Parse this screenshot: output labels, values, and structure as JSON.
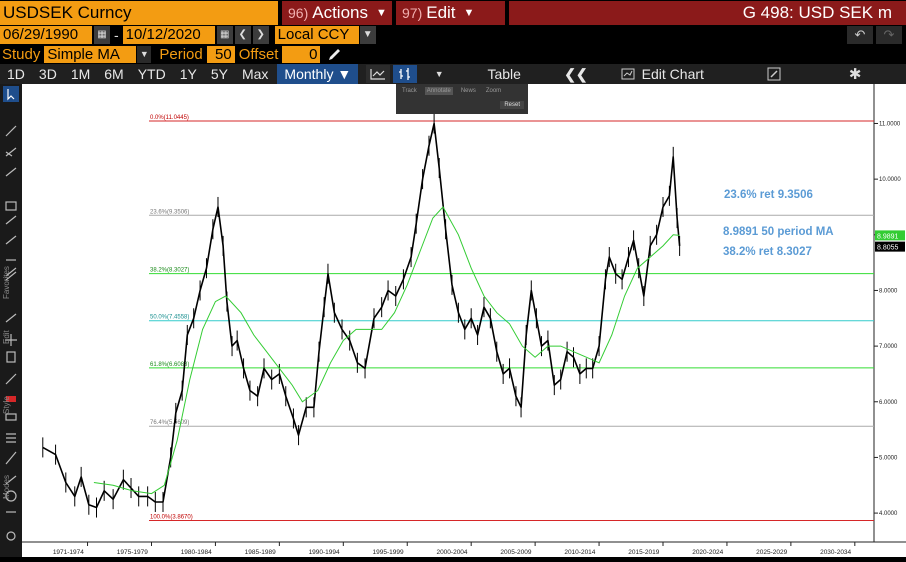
{
  "header": {
    "ticker": "USDSEK Curncy",
    "actions_num": "96)",
    "actions_label": "Actions",
    "edit_num": "97)",
    "edit_label": "Edit",
    "title": "G 498: USD SEK m"
  },
  "range": {
    "start_date": "06/29/1990",
    "separator": "-",
    "end_date": "10/12/2020",
    "currency": "Local CCY"
  },
  "study": {
    "label": "Study",
    "value": "Simple MA",
    "period_label": "Period",
    "period": "50",
    "offset_label": "Offset",
    "offset": "0"
  },
  "toolbar": {
    "periods": [
      "1D",
      "3D",
      "1M",
      "6M",
      "YTD",
      "1Y",
      "5Y",
      "Max"
    ],
    "frequency": "Monthly ▼",
    "table_label": "Table",
    "edit_chart_label": "Edit Chart"
  },
  "popup": {
    "items": [
      "Track",
      "Annotate",
      "News",
      "Zoom"
    ],
    "reset": "Reset"
  },
  "colors": {
    "accent": "#f39c12",
    "brand_red": "#8b1a1a",
    "price": "#000000",
    "ma": "#33cc33",
    "annotation": "#5b9bd5"
  },
  "chart_data": {
    "type": "line",
    "title": "",
    "xlabel": "",
    "ylabel": "",
    "ylim": [
      3.75,
      11.35
    ],
    "x_ticks": [
      "1971-1974",
      "1975-1979",
      "1980-1984",
      "1985-1989",
      "1990-1994",
      "1995-1999",
      "2000-2004",
      "2005-2009",
      "2010-2014",
      "2015-2019",
      "2020-2024",
      "2025-2029",
      "2030-2034"
    ],
    "y_ticks": [
      "11.0000",
      "10.0000",
      "9.0000",
      "8.0000",
      "7.0000",
      "6.0000",
      "5.0000",
      "4.0000"
    ],
    "y_tick_values": [
      11,
      10,
      9,
      8,
      7,
      6,
      5,
      4
    ],
    "fib_levels": [
      {
        "label": "0.0%(11.0445)",
        "value": 11.0445,
        "color": "#d62728"
      },
      {
        "label": "23.6%(9.3506)",
        "value": 9.3506,
        "color": "#aaaaaa"
      },
      {
        "label": "38.2%(8.3027)",
        "value": 8.3027,
        "color": "#33dd33"
      },
      {
        "label": "50.0%(7.4558)",
        "value": 7.4558,
        "color": "#33cccc"
      },
      {
        "label": "61.8%(6.6088)",
        "value": 6.6088,
        "color": "#33dd33"
      },
      {
        "label": "76.4%(5.5609)",
        "value": 5.5609,
        "color": "#aaaaaa"
      },
      {
        "label": "100.0%(3.8670)",
        "value": 3.867,
        "color": "#d62728"
      }
    ],
    "series": [
      {
        "name": "USDSEK Curncy",
        "x": [
          1971.0,
          1972.0,
          1972.8,
          1973.5,
          1974.0,
          1974.6,
          1975.2,
          1975.8,
          1976.5,
          1977.3,
          1977.9,
          1978.5,
          1979.2,
          1979.8,
          1980.4,
          1981.0,
          1981.4,
          1981.9,
          1982.3,
          1982.8,
          1983.3,
          1983.8,
          1984.3,
          1984.7,
          1985.1,
          1985.4,
          1985.8,
          1986.2,
          1986.7,
          1987.2,
          1987.8,
          1988.3,
          1988.9,
          1989.5,
          1990.0,
          1990.6,
          1991.0,
          1991.6,
          1992.2,
          1992.6,
          1993.0,
          1993.3,
          1993.8,
          1994.4,
          1995.0,
          1995.6,
          1996.2,
          1996.9,
          1997.5,
          1998.0,
          1998.6,
          1999.2,
          1999.8,
          2000.2,
          2000.7,
          2001.2,
          2001.6,
          2002.0,
          2002.5,
          2003.0,
          2003.5,
          2004.0,
          2004.5,
          2005.0,
          2005.5,
          2006.0,
          2006.5,
          2007.0,
          2007.5,
          2008.0,
          2008.4,
          2008.8,
          2009.2,
          2009.6,
          2010.0,
          2010.5,
          2011.0,
          2011.5,
          2012.0,
          2012.5,
          2013.0,
          2013.5,
          2014.0,
          2014.5,
          2015.0,
          2015.3,
          2015.8,
          2016.3,
          2016.8,
          2017.2,
          2017.6,
          2018.0,
          2018.5,
          2019.0,
          2019.5,
          2020.0,
          2020.3,
          2020.6,
          2020.8
        ],
        "values": [
          5.18,
          5.05,
          4.55,
          4.3,
          4.65,
          4.15,
          4.1,
          4.4,
          4.25,
          4.6,
          4.45,
          4.3,
          4.3,
          4.2,
          4.2,
          5.0,
          5.8,
          6.2,
          7.2,
          7.5,
          8.0,
          8.4,
          9.1,
          9.5,
          8.8,
          7.8,
          7.0,
          7.1,
          6.6,
          6.2,
          6.1,
          6.6,
          6.4,
          6.5,
          6.1,
          5.7,
          5.4,
          5.9,
          5.9,
          6.9,
          7.7,
          8.3,
          7.6,
          7.3,
          7.1,
          6.7,
          6.6,
          7.5,
          7.7,
          8.0,
          7.9,
          8.2,
          8.6,
          9.2,
          10.0,
          10.6,
          11.0,
          10.2,
          9.1,
          8.1,
          7.6,
          7.3,
          7.5,
          7.2,
          7.7,
          7.5,
          6.9,
          6.5,
          6.6,
          6.1,
          5.9,
          7.2,
          8.0,
          7.5,
          7.0,
          7.1,
          6.3,
          6.4,
          6.9,
          6.8,
          6.5,
          6.6,
          6.6,
          7.0,
          8.2,
          8.6,
          8.3,
          8.2,
          8.6,
          8.9,
          8.4,
          7.9,
          8.8,
          9.0,
          9.5,
          9.7,
          10.4,
          9.3,
          8.8
        ]
      },
      {
        "name": "Simple MA 50",
        "x": [
          1975.0,
          1976.5,
          1978.0,
          1979.5,
          1980.5,
          1981.5,
          1982.5,
          1983.5,
          1984.5,
          1985.3,
          1986.5,
          1987.5,
          1988.5,
          1989.5,
          1990.5,
          1991.3,
          1992.5,
          1993.5,
          1994.5,
          1995.5,
          1996.5,
          1997.5,
          1998.5,
          1999.5,
          2000.5,
          2001.5,
          2002.3,
          2003.5,
          2004.5,
          2005.5,
          2006.5,
          2007.5,
          2008.5,
          2009.5,
          2010.5,
          2011.5,
          2012.5,
          2013.5,
          2014.5,
          2015.5,
          2016.5,
          2017.5,
          2018.5,
          2019.5,
          2020.3,
          2020.8
        ],
        "values": [
          4.55,
          4.5,
          4.4,
          4.35,
          4.5,
          5.3,
          6.4,
          7.3,
          7.8,
          7.9,
          7.6,
          7.2,
          6.9,
          6.6,
          6.3,
          6.0,
          6.2,
          6.7,
          7.1,
          7.3,
          7.3,
          7.3,
          7.6,
          8.1,
          8.7,
          9.3,
          9.5,
          9.0,
          8.4,
          7.9,
          7.6,
          7.4,
          7.0,
          6.8,
          7.0,
          7.0,
          6.9,
          6.8,
          6.7,
          7.2,
          7.9,
          8.4,
          8.6,
          8.8,
          9.0,
          8.99
        ]
      }
    ],
    "last_price_label": "8.8055",
    "ma_label": "8.9891",
    "annotations": [
      "23.6% ret 9.3506",
      "8.9891 50 period MA",
      "38.2% ret 8.3027"
    ]
  }
}
